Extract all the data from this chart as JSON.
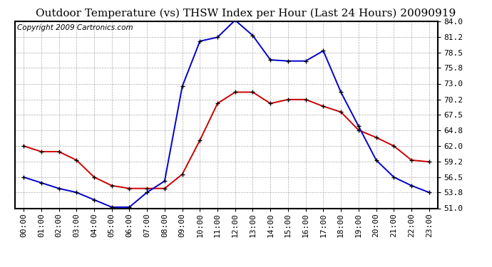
{
  "title": "Outdoor Temperature (vs) THSW Index per Hour (Last 24 Hours) 20090919",
  "copyright": "Copyright 2009 Cartronics.com",
  "hours": [
    "00:00",
    "01:00",
    "02:00",
    "03:00",
    "04:00",
    "05:00",
    "06:00",
    "07:00",
    "08:00",
    "09:00",
    "10:00",
    "11:00",
    "12:00",
    "13:00",
    "14:00",
    "15:00",
    "16:00",
    "17:00",
    "18:00",
    "19:00",
    "20:00",
    "21:00",
    "22:00",
    "23:00"
  ],
  "temp": [
    62.0,
    61.0,
    61.0,
    59.5,
    56.5,
    55.0,
    54.5,
    54.5,
    54.5,
    57.0,
    63.0,
    69.5,
    71.5,
    71.5,
    69.5,
    70.2,
    70.2,
    69.0,
    68.0,
    64.8,
    63.5,
    62.0,
    59.5,
    59.2
  ],
  "thsw": [
    56.5,
    55.5,
    54.5,
    53.8,
    52.5,
    51.2,
    51.2,
    53.8,
    55.8,
    72.5,
    80.5,
    81.2,
    84.2,
    81.5,
    77.2,
    77.0,
    77.0,
    78.8,
    71.5,
    65.5,
    59.5,
    56.5,
    55.0,
    53.8
  ],
  "temp_color": "#cc0000",
  "thsw_color": "#0000cc",
  "background_color": "#ffffff",
  "grid_color": "#999999",
  "ylim": [
    51.0,
    84.0
  ],
  "yticks": [
    51.0,
    53.8,
    56.5,
    59.2,
    62.0,
    64.8,
    67.5,
    70.2,
    73.0,
    75.8,
    78.5,
    81.2,
    84.0
  ],
  "title_fontsize": 11,
  "copyright_fontsize": 7.5,
  "tick_fontsize": 8,
  "marker_size": 4,
  "linewidth": 1.4
}
